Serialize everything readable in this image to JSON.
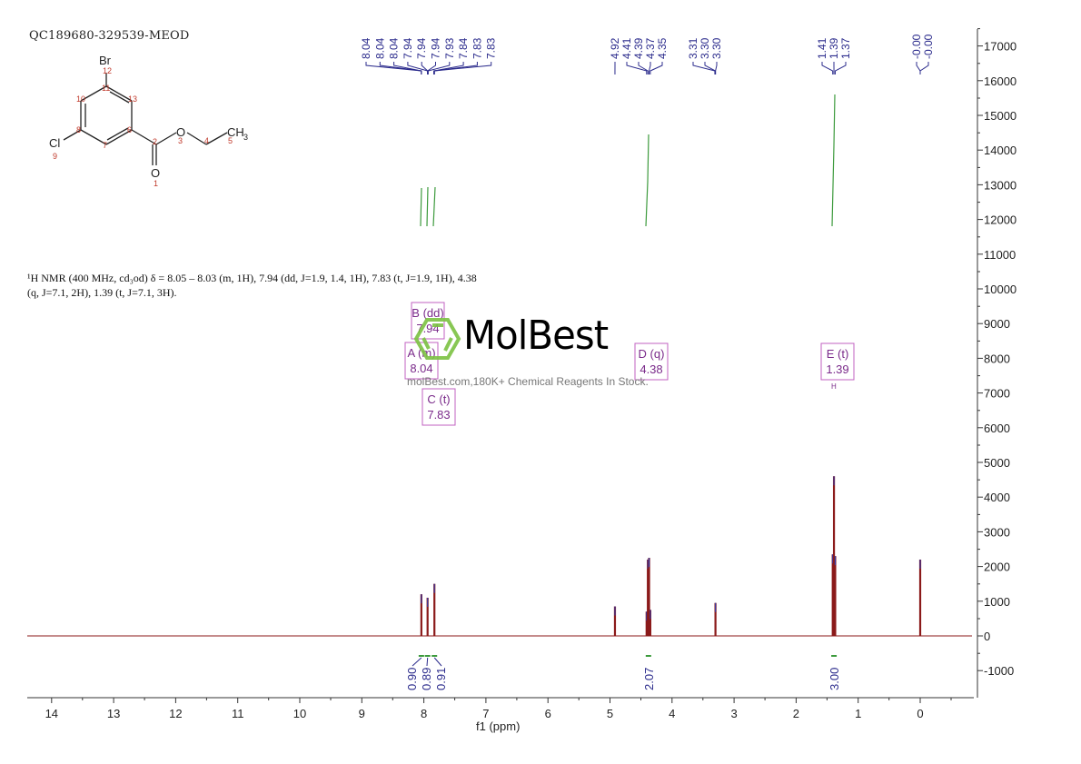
{
  "header": {
    "sample_id": "QC189680-329539-MEOD"
  },
  "structure": {
    "name": "ethyl 3-bromo-5-chlorobenzoate",
    "atoms": [
      {
        "label": "Br",
        "num": "12"
      },
      {
        "label": "Cl",
        "num": "9"
      },
      {
        "label": "O",
        "num": "1"
      },
      {
        "label": "O",
        "num": "3"
      },
      {
        "label": "CH3",
        "num": "5"
      }
    ],
    "carbon_numbers": [
      "2",
      "4",
      "6",
      "7",
      "8",
      "10",
      "11",
      "13"
    ]
  },
  "nmr_description": {
    "line1": "¹H NMR (400 MHz, cd₃od) δ = 8.05 – 8.03 (m, 1H), 7.94 (dd, J=1.9, 1.4, 1H), 7.83 (t, J=1.9, 1H), 4.38",
    "line2": "(q, J=7.1, 2H), 1.39 (t, J=7.1, 3H)."
  },
  "watermark": {
    "brand": "MolBest",
    "tagline": "molBest.com,180K+ Chemical Reagents In Stock."
  },
  "colors": {
    "spectrum": "#8b1a1a",
    "peak_labels": "#2b2b8c",
    "integral": "#3c9a3c",
    "multiplet_box": "#c060c0",
    "multiplet_text": "#7a2a8a",
    "logo_green": "#7cc242",
    "structure_numbers": "#c0392b"
  },
  "chart_data": {
    "type": "line",
    "title": "",
    "xlabel": "f1 (ppm)",
    "ylabel": "",
    "xlim": [
      14.4,
      -0.9
    ],
    "ylim": [
      -1600,
      17500
    ],
    "x_ticks": [
      14,
      13,
      12,
      11,
      10,
      9,
      8,
      7,
      6,
      5,
      4,
      3,
      2,
      1,
      0
    ],
    "y_ticks": [
      -1000,
      0,
      1000,
      2000,
      3000,
      4000,
      5000,
      6000,
      7000,
      8000,
      9000,
      10000,
      11000,
      12000,
      13000,
      14000,
      15000,
      16000,
      17000
    ],
    "grid": false,
    "peak_labels_group1": [
      "8.04",
      "8.04",
      "8.04",
      "7.94",
      "7.94",
      "7.94",
      "7.93",
      "7.84",
      "7.83",
      "7.83"
    ],
    "peak_labels_group2": [
      "4.92",
      "4.41",
      "4.39",
      "4.37",
      "4.35",
      "3.31",
      "3.30",
      "3.30",
      "1.41",
      "1.39",
      "1.37",
      "-0.00",
      "-0.00"
    ],
    "peaks": [
      {
        "ppm": 8.04,
        "intensity": 1200
      },
      {
        "ppm": 7.94,
        "intensity": 1100
      },
      {
        "ppm": 7.83,
        "intensity": 1500
      },
      {
        "ppm": 4.92,
        "intensity": 850
      },
      {
        "ppm": 4.41,
        "intensity": 700
      },
      {
        "ppm": 4.39,
        "intensity": 2200
      },
      {
        "ppm": 4.37,
        "intensity": 2250
      },
      {
        "ppm": 4.35,
        "intensity": 750
      },
      {
        "ppm": 3.3,
        "intensity": 950
      },
      {
        "ppm": 1.41,
        "intensity": 2350
      },
      {
        "ppm": 1.39,
        "intensity": 4600
      },
      {
        "ppm": 1.37,
        "intensity": 2300
      },
      {
        "ppm": 0.0,
        "intensity": 2200
      }
    ],
    "multiplets": [
      {
        "id": "A",
        "type": "m",
        "shift": "8.04"
      },
      {
        "id": "B",
        "type": "dd",
        "shift": "7.94"
      },
      {
        "id": "C",
        "type": "t",
        "shift": "7.83"
      },
      {
        "id": "D",
        "type": "q",
        "shift": "4.38"
      },
      {
        "id": "E",
        "type": "t",
        "shift": "1.39"
      }
    ],
    "integrals": [
      {
        "ppm": 8.04,
        "value": "0.90"
      },
      {
        "ppm": 7.94,
        "value": "0.89"
      },
      {
        "ppm": 7.83,
        "value": "0.91"
      },
      {
        "ppm": 4.38,
        "value": "2.07"
      },
      {
        "ppm": 1.39,
        "value": "3.00"
      }
    ]
  }
}
